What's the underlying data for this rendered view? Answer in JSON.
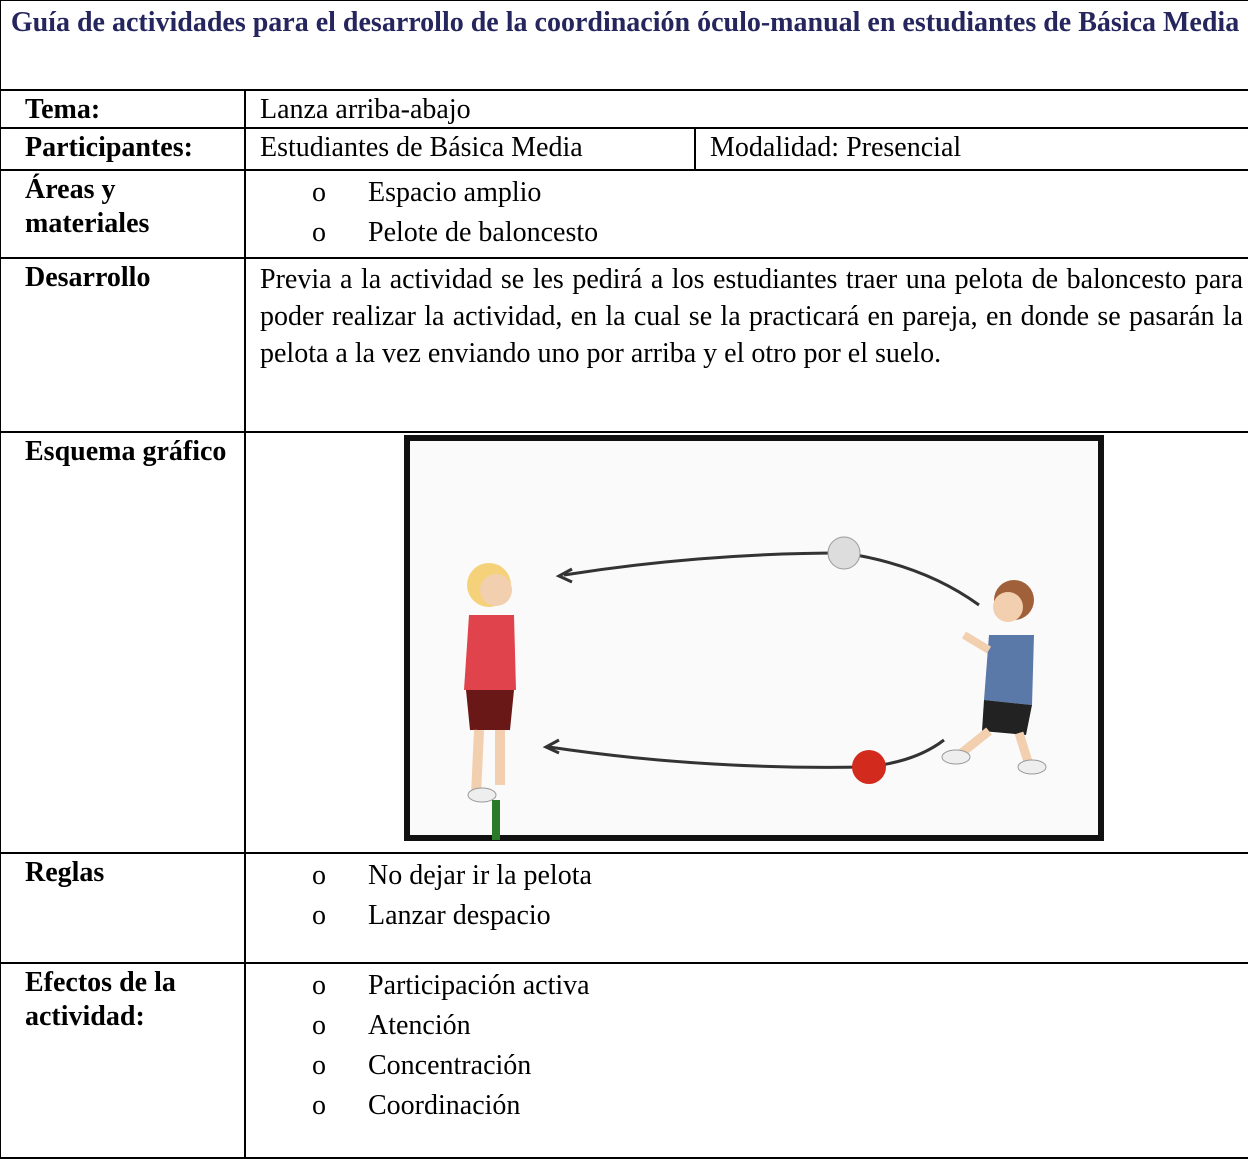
{
  "title": "Guía de actividades para el desarrollo de la coordinación óculo-manual en estudiantes de Básica Media",
  "rows": [
    {
      "label": "Tema:",
      "value": "Lanza arriba-abajo"
    },
    {
      "label": "Participantes:",
      "value": "Estudiantes de Básica Media",
      "extra": "Modalidad: Presencial"
    },
    {
      "label": "Áreas y materiales",
      "items": [
        "Espacio amplio",
        "Pelote de baloncesto"
      ]
    },
    {
      "label": "Desarrollo",
      "text": "Previa a la actividad se les pedirá a los estudiantes traer una pelota de baloncesto para poder realizar la actividad, en la cual se la practicará en pareja, en donde se pasarán la pelota a la vez enviando uno por arriba y el otro por el suelo."
    },
    {
      "label": "Esquema gráfico"
    },
    {
      "label": "Reglas",
      "items": [
        "No dejar ir la pelota",
        "Lanzar despacio"
      ]
    },
    {
      "label": "Efectos de la actividad:",
      "items": [
        "Participación activa",
        "Atención",
        "Concentración",
        "Coordinación"
      ]
    }
  ]
}
